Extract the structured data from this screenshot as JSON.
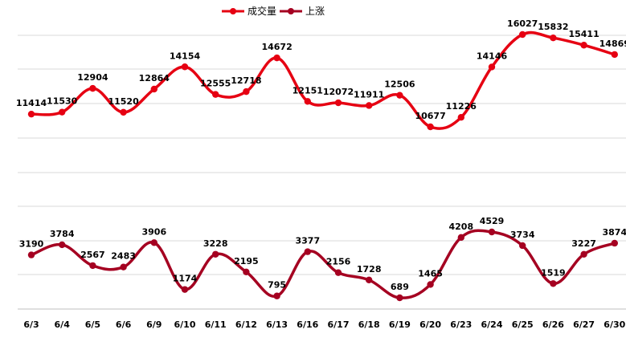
{
  "chart_data": {
    "type": "line",
    "categories": [
      "6/3",
      "6/4",
      "6/5",
      "6/6",
      "6/9",
      "6/10",
      "6/11",
      "6/12",
      "6/13",
      "6/16",
      "6/17",
      "6/18",
      "6/19",
      "6/20",
      "6/23",
      "6/24",
      "6/25",
      "6/26",
      "6/27",
      "6/30"
    ],
    "series": [
      {
        "name": "成交量",
        "color": "#e60012",
        "values": [
          11414,
          11530,
          12904,
          11520,
          12864,
          14154,
          12555,
          12718,
          14672,
          12151,
          12072,
          11911,
          12506,
          10677,
          11226,
          14146,
          16027,
          15832,
          15411,
          14869
        ]
      },
      {
        "name": "上涨",
        "color": "#a50021",
        "values": [
          3190,
          3784,
          2567,
          2483,
          3906,
          1174,
          3228,
          2195,
          795,
          3377,
          2156,
          1728,
          689,
          1465,
          4208,
          4529,
          3734,
          1519,
          3227,
          3874
        ]
      }
    ],
    "legend": "top-center",
    "grid": true,
    "smooth": true
  }
}
